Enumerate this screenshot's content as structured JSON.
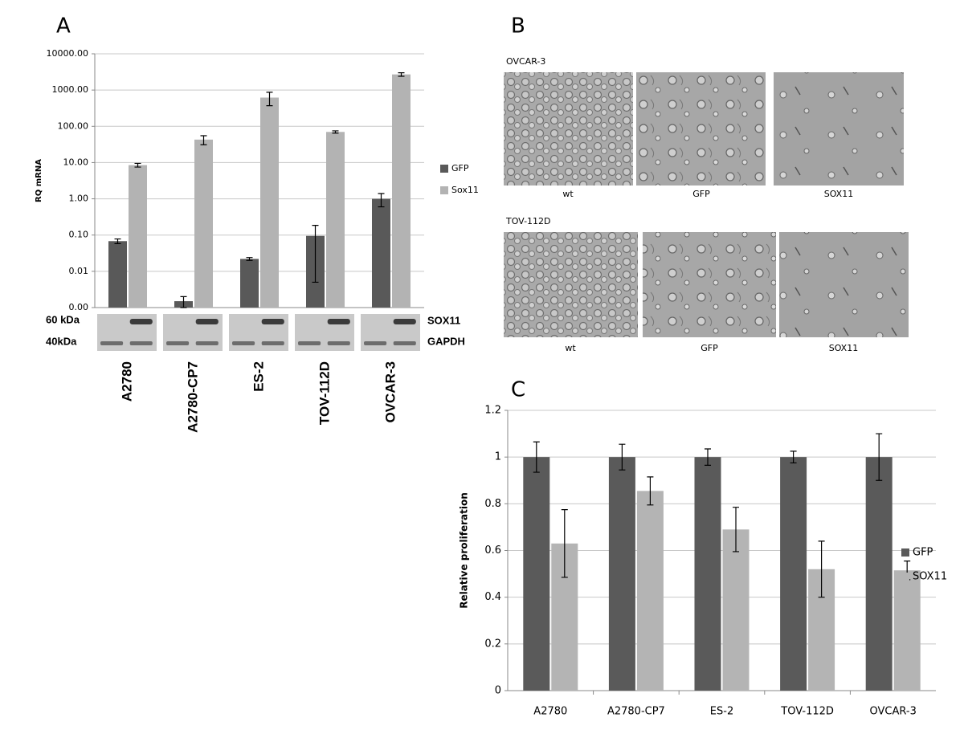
{
  "chart_data": [
    {
      "type": "bar",
      "ylabel": "RQ mRNA",
      "log_scale": true,
      "grid": true,
      "legend": "right",
      "categories": [
        "A2780",
        "A2780-CP7",
        "ES-2",
        "TOV-112D",
        "OVCAR-3"
      ],
      "series": [
        {
          "name": "GFP",
          "color": "#595959",
          "values": [
            0.068,
            0.0015,
            0.022,
            0.095,
            1.0
          ],
          "errors": [
            0.01,
            0.0005,
            0.002,
            0.09,
            0.4
          ]
        },
        {
          "name": "Sox11",
          "color": "#b3b3b3",
          "values": [
            8.5,
            43,
            620,
            70,
            2700
          ],
          "errors": [
            1,
            12,
            250,
            5,
            300
          ]
        }
      ],
      "ylim": [
        0.001,
        10000
      ],
      "yticks": [
        {
          "value": 0.001,
          "label": "0.00"
        },
        {
          "value": 0.01,
          "label": "0.01"
        },
        {
          "value": 0.1,
          "label": "0.10"
        },
        {
          "value": 1,
          "label": "1.00"
        },
        {
          "value": 10,
          "label": "10.00"
        },
        {
          "value": 100,
          "label": "100.00"
        },
        {
          "value": 1000,
          "label": "1000.00"
        },
        {
          "value": 10000,
          "label": "10000.00"
        }
      ]
    },
    {
      "type": "bar",
      "ylabel": "Relative proliferation",
      "log_scale": false,
      "grid": true,
      "legend": "right",
      "categories": [
        "A2780",
        "A2780-CP7",
        "ES-2",
        "TOV-112D",
        "OVCAR-3"
      ],
      "series": [
        {
          "name": "GFP",
          "color": "#5a5a5a",
          "values": [
            1,
            1,
            1,
            1,
            1
          ],
          "errors": [
            0.065,
            0.055,
            0.035,
            0.025,
            0.1
          ]
        },
        {
          "name": "SOX11",
          "color": "#b4b4b4",
          "values": [
            0.63,
            0.855,
            0.69,
            0.52,
            0.515
          ],
          "errors": [
            0.145,
            0.06,
            0.095,
            0.12,
            0.04
          ]
        }
      ],
      "ylim": [
        0,
        1.2
      ],
      "yticks": [
        0,
        0.2,
        0.4,
        0.6,
        0.8,
        1,
        1.2
      ]
    }
  ],
  "panels": {
    "A": {
      "label": "A",
      "blot_sizes": [
        "60 kDa",
        "40kDa"
      ],
      "blot_proteins": [
        "SOX11",
        "GAPDH"
      ]
    },
    "B": {
      "label": "B",
      "rows": [
        {
          "name": "OVCAR-3",
          "captions": [
            "wt",
            "GFP",
            "SOX11"
          ]
        },
        {
          "name": "TOV-112D",
          "captions": [
            "wt",
            "GFP",
            "SOX11"
          ]
        }
      ]
    },
    "C": {
      "label": "C"
    }
  }
}
